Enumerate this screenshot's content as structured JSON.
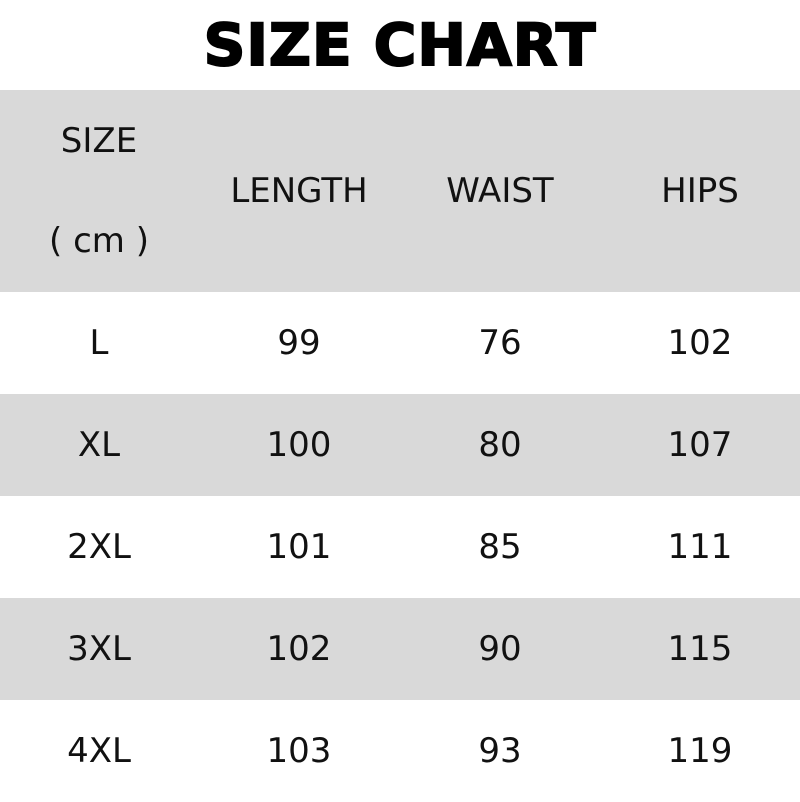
{
  "title": "SIZE CHART",
  "header": {
    "size_label": "SIZE",
    "size_unit": "( cm )",
    "length": "LENGTH",
    "waist": "WAIST",
    "hips": "HIPS"
  },
  "rows": [
    {
      "size": "L",
      "length": "99",
      "waist": "76",
      "hips": "102"
    },
    {
      "size": "XL",
      "length": "100",
      "waist": "80",
      "hips": "107"
    },
    {
      "size": "2XL",
      "length": "101",
      "waist": "85",
      "hips": "111"
    },
    {
      "size": "3XL",
      "length": "102",
      "waist": "90",
      "hips": "115"
    },
    {
      "size": "4XL",
      "length": "103",
      "waist": "93",
      "hips": "119"
    }
  ],
  "colors": {
    "stripe": "#d9d9d9",
    "background": "#ffffff",
    "text": "#111111"
  }
}
